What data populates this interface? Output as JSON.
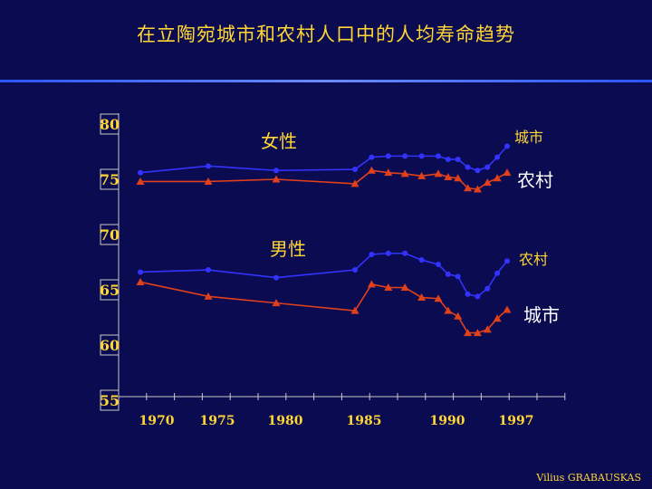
{
  "slide": {
    "title": "在立陶宛城市和农村人口中的人均寿命趋势",
    "credit": "Vilius GRABAUSKAS"
  },
  "chart_data": {
    "type": "line",
    "title": "在立陶宛城市和农村人口中的人均寿命趋势",
    "xlabel": "",
    "ylabel": "",
    "ylim": [
      55,
      80
    ],
    "y_ticks": [
      55,
      60,
      65,
      70,
      75,
      80
    ],
    "x_ticks": [
      1970,
      1975,
      1980,
      1985,
      1990,
      1997
    ],
    "grid": false,
    "group_labels": [
      {
        "text": "女性",
        "anchor_series": "female_urban"
      },
      {
        "text": "男性",
        "anchor_series": "male_rural"
      }
    ],
    "series": [
      {
        "id": "female_urban",
        "name": "城市",
        "color": "#3333ff",
        "marker": "circle",
        "x": [
          1970,
          1975,
          1980,
          1985,
          1986,
          1987,
          1988,
          1989,
          1990,
          1991,
          1992,
          1993,
          1994,
          1995,
          1996,
          1997
        ],
        "values": [
          75.6,
          76.2,
          75.8,
          75.9,
          77.0,
          77.1,
          77.1,
          77.1,
          77.1,
          76.8,
          76.8,
          76.1,
          75.8,
          76.1,
          77.0,
          78.0
        ]
      },
      {
        "id": "female_rural",
        "name": "农村",
        "color": "#e0401a",
        "marker": "triangle",
        "x": [
          1970,
          1975,
          1980,
          1985,
          1986,
          1987,
          1988,
          1989,
          1990,
          1991,
          1992,
          1993,
          1994,
          1995,
          1996,
          1997
        ],
        "values": [
          74.8,
          74.8,
          75.0,
          74.6,
          75.8,
          75.6,
          75.5,
          75.3,
          75.5,
          75.2,
          75.1,
          74.2,
          74.1,
          74.7,
          75.1,
          75.6
        ]
      },
      {
        "id": "male_rural",
        "name": "农村",
        "color": "#3333ff",
        "marker": "circle",
        "x": [
          1970,
          1975,
          1980,
          1985,
          1986,
          1987,
          1988,
          1989,
          1990,
          1991,
          1992,
          1993,
          1994,
          1995,
          1996,
          1997
        ],
        "values": [
          66.6,
          66.8,
          66.1,
          66.8,
          68.2,
          68.3,
          68.3,
          67.7,
          67.3,
          66.4,
          66.2,
          64.6,
          64.4,
          65.1,
          66.5,
          67.6
        ]
      },
      {
        "id": "male_urban",
        "name": "城市",
        "color": "#e0401a",
        "marker": "triangle",
        "x": [
          1970,
          1975,
          1980,
          1985,
          1986,
          1987,
          1988,
          1989,
          1990,
          1991,
          1992,
          1993,
          1994,
          1995,
          1996,
          1997
        ],
        "values": [
          65.7,
          64.4,
          63.8,
          63.1,
          65.5,
          65.2,
          65.2,
          64.3,
          64.2,
          63.1,
          62.6,
          61.1,
          61.1,
          61.4,
          62.4,
          63.2
        ]
      }
    ]
  }
}
